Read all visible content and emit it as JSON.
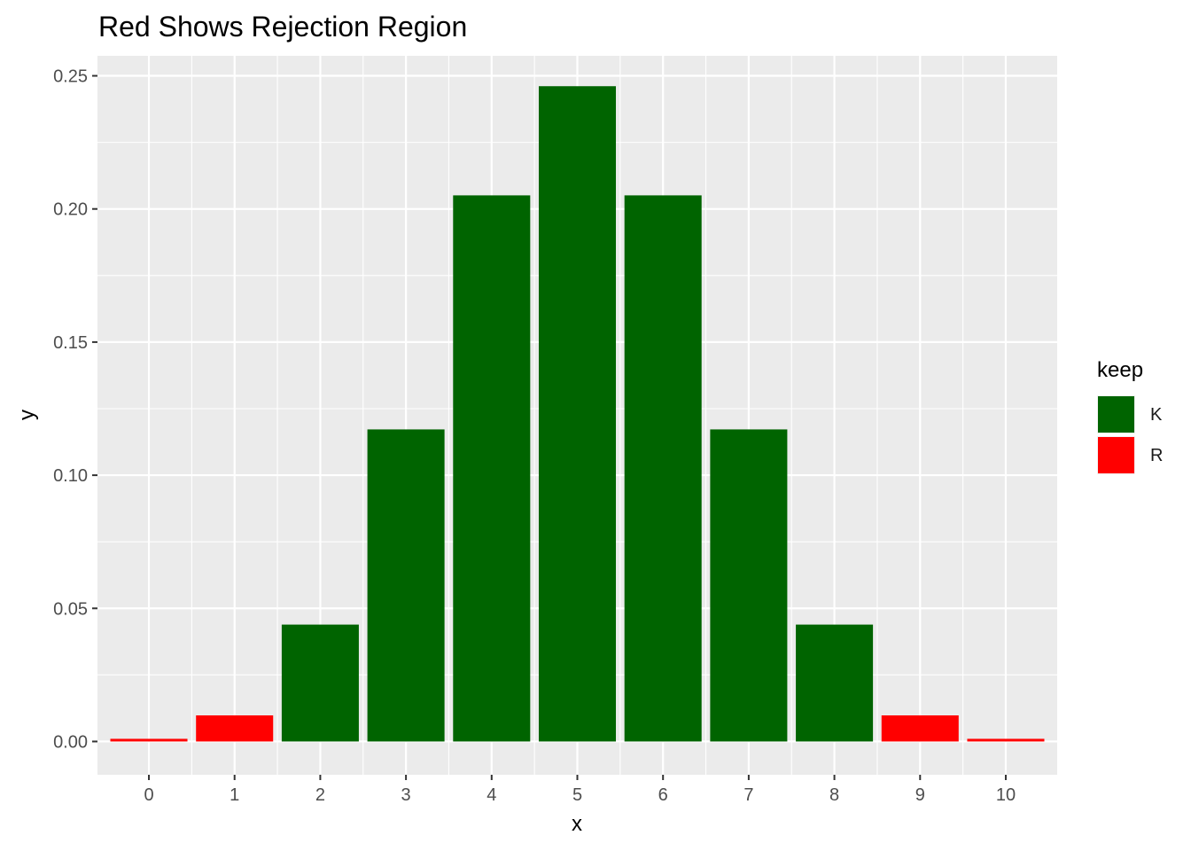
{
  "chart_data": {
    "type": "bar",
    "title": "Red Shows Rejection Region",
    "xlabel": "x",
    "ylabel": "y",
    "categories": [
      "0",
      "1",
      "2",
      "3",
      "4",
      "5",
      "6",
      "7",
      "8",
      "9",
      "10"
    ],
    "values": [
      0.001,
      0.0098,
      0.0439,
      0.1172,
      0.2051,
      0.2461,
      0.2051,
      0.1172,
      0.0439,
      0.0098,
      0.001
    ],
    "groups": [
      "R",
      "R",
      "K",
      "K",
      "K",
      "K",
      "K",
      "K",
      "K",
      "R",
      "R"
    ],
    "ylim": [
      -0.0125,
      0.2575
    ],
    "yticks": [
      0.0,
      0.05,
      0.1,
      0.15,
      0.2,
      0.25
    ],
    "ytick_labels": [
      "0.00",
      "0.05",
      "0.10",
      "0.15",
      "0.20",
      "0.25"
    ],
    "grid": true,
    "legend": {
      "title": "keep",
      "position": "right",
      "items": [
        {
          "key": "K",
          "label": "K",
          "color": "#006400"
        },
        {
          "key": "R",
          "label": "R",
          "color": "#ff0000"
        }
      ]
    },
    "panel_background": "#ebebeb",
    "grid_color": "#ffffff"
  }
}
